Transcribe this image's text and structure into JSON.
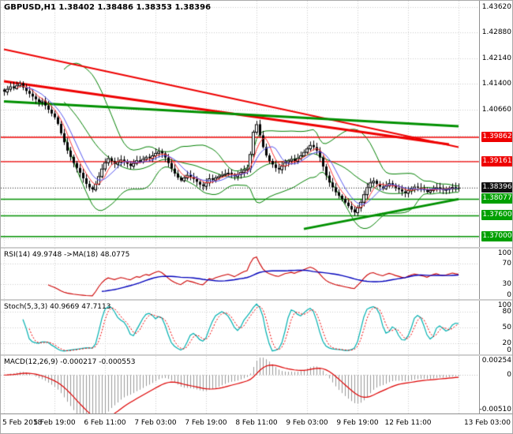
{
  "header": {
    "title": "GBPUSD,H1 1.38402 1.38486 1.38353 1.38396",
    "symbol": "GBPUSD",
    "timeframe": "H1",
    "open": "1.38402",
    "high": "1.38486",
    "low": "1.38353",
    "close": "1.38396"
  },
  "colors": {
    "background": "#ffffff",
    "grid": "#cccccc",
    "bollinger": "#008000",
    "resistance_line": "#ee0000",
    "support_line": "#009000",
    "badge_red": "#ee0000",
    "badge_green": "#00a000",
    "badge_black": "#101010",
    "rsi_line": "#cc0000",
    "rsi_ma_line": "#0000bb",
    "stoch_k": "#00b0b0",
    "stoch_d": "#ee0000",
    "macd_histogram": "#999999",
    "macd_signal": "#dd0000"
  },
  "price_axis": {
    "labels": [
      "1.43620",
      "1.42880",
      "1.42140",
      "1.41400",
      "1.40660"
    ],
    "badges": [
      {
        "text": "1.39862",
        "bg": "#ee0000"
      },
      {
        "text": "1.39161",
        "bg": "#ee0000"
      },
      {
        "text": "1.38396",
        "bg": "#101010"
      },
      {
        "text": "1.38077",
        "bg": "#00a000"
      },
      {
        "text": "1.37600",
        "bg": "#00a000"
      },
      {
        "text": "1.37000",
        "bg": "#00a000"
      }
    ]
  },
  "chart_data": {
    "type": "candlestick",
    "title": "GBPUSD,H1",
    "x_labels": [
      "5 Feb 2018",
      "5 Feb 19:00",
      "6 Feb 11:00",
      "7 Feb 03:00",
      "7 Feb 19:00",
      "8 Feb 11:00",
      "9 Feb 03:00",
      "9 Feb 19:00",
      "12 Feb 11:00",
      "13 Feb 03:00"
    ],
    "main": {
      "ylim": [
        1.367,
        1.438
      ],
      "grid_prices": [
        1.4362,
        1.4288,
        1.4214,
        1.414,
        1.4066,
        1.3992,
        1.3918,
        1.3844,
        1.377,
        1.3696
      ],
      "closes": [
        1.4118,
        1.4126,
        1.4133,
        1.4128,
        1.4136,
        1.4142,
        1.413,
        1.412,
        1.4112,
        1.4104,
        1.4096,
        1.4088,
        1.4092,
        1.4078,
        1.4066,
        1.4055,
        1.4044,
        1.4025,
        1.3998,
        1.3972,
        1.3948,
        1.393,
        1.3912,
        1.3898,
        1.3884,
        1.3868,
        1.3852,
        1.3842,
        1.3836,
        1.3852,
        1.3874,
        1.3896,
        1.3914,
        1.3926,
        1.3918,
        1.391,
        1.3916,
        1.3922,
        1.3917,
        1.391,
        1.3904,
        1.3912,
        1.392,
        1.3916,
        1.3924,
        1.393,
        1.3926,
        1.3934,
        1.3941,
        1.3946,
        1.394,
        1.3928,
        1.3912,
        1.3896,
        1.3882,
        1.387,
        1.3862,
        1.387,
        1.3878,
        1.3872,
        1.3866,
        1.3858,
        1.385,
        1.3846,
        1.3856,
        1.3868,
        1.3864,
        1.387,
        1.3874,
        1.3878,
        1.3881,
        1.3884,
        1.3879,
        1.3874,
        1.388,
        1.3886,
        1.3892,
        1.3896,
        1.3938,
        1.4002,
        1.4024,
        1.3992,
        1.3958,
        1.3934,
        1.3918,
        1.3908,
        1.3898,
        1.3894,
        1.3904,
        1.3914,
        1.3919,
        1.3924,
        1.3918,
        1.3926,
        1.3934,
        1.3944,
        1.3954,
        1.3964,
        1.3958,
        1.3948,
        1.3928,
        1.3902,
        1.3876,
        1.3856,
        1.3842,
        1.3828,
        1.3818,
        1.3808,
        1.3798,
        1.3788,
        1.3778,
        1.377,
        1.3784,
        1.38,
        1.3822,
        1.3842,
        1.3856,
        1.3861,
        1.3852,
        1.3844,
        1.3839,
        1.3847,
        1.3854,
        1.3849,
        1.3841,
        1.3836,
        1.383,
        1.3826,
        1.3834,
        1.3839,
        1.3844,
        1.3841,
        1.3837,
        1.3834,
        1.3829,
        1.3834,
        1.3839,
        1.3842,
        1.3838,
        1.3835,
        1.3837,
        1.384,
        1.3843,
        1.3841,
        1.38396
      ],
      "levels": {
        "resistance": [
          1.39862,
          1.39161
        ],
        "support": [
          1.38077,
          1.376,
          1.37
        ],
        "current_price": 1.38396
      },
      "trend_lines": [
        {
          "b1": 0,
          "p1": 1.424,
          "b2": 144,
          "p2": 1.3958,
          "color": "#ee0000",
          "width": 2
        },
        {
          "b1": 0,
          "p1": 1.4148,
          "b2": 141,
          "p2": 1.3966,
          "color": "#ee0000",
          "width": 3
        },
        {
          "b1": 0,
          "p1": 1.409,
          "b2": 144,
          "p2": 1.4018,
          "color": "#009000",
          "width": 3
        },
        {
          "b1": 95,
          "p1": 1.3722,
          "b2": 144,
          "p2": 1.3808,
          "color": "#009000",
          "width": 3
        }
      ],
      "bollinger": {
        "period": 20,
        "deviation": 2
      },
      "ma_fast_period": 5,
      "ma_slow_period": 8
    },
    "rsi": {
      "label": "RSI(14) 49.9748 ->MA(18) 48.0775",
      "period": 14,
      "ma_period": 18,
      "last": 49.9748,
      "ma_last": 48.0775,
      "ylim": [
        0,
        100
      ],
      "grid": [
        70,
        30
      ],
      "axis_labels": [
        "100",
        "70",
        "30",
        "0"
      ]
    },
    "stoch": {
      "label": "Stoch(5,3,3) 40.9669 47.7113",
      "k": 5,
      "d": 3,
      "slowing": 3,
      "last_k": 40.9669,
      "last_d": 47.7113,
      "ylim": [
        0,
        100
      ],
      "grid": [
        80,
        50,
        20
      ],
      "axis_labels": [
        "100",
        "80",
        "50",
        "20",
        "0"
      ]
    },
    "macd": {
      "label": "MACD(12,26,9) -0.000217 -0.000553",
      "fast": 12,
      "slow": 26,
      "signal": 9,
      "last_macd": -0.000217,
      "last_signal": -0.000553,
      "ylim": [
        -0.0051,
        0.00254
      ],
      "axis_labels": [
        "0.00254",
        "0",
        "-0.00510"
      ]
    }
  }
}
